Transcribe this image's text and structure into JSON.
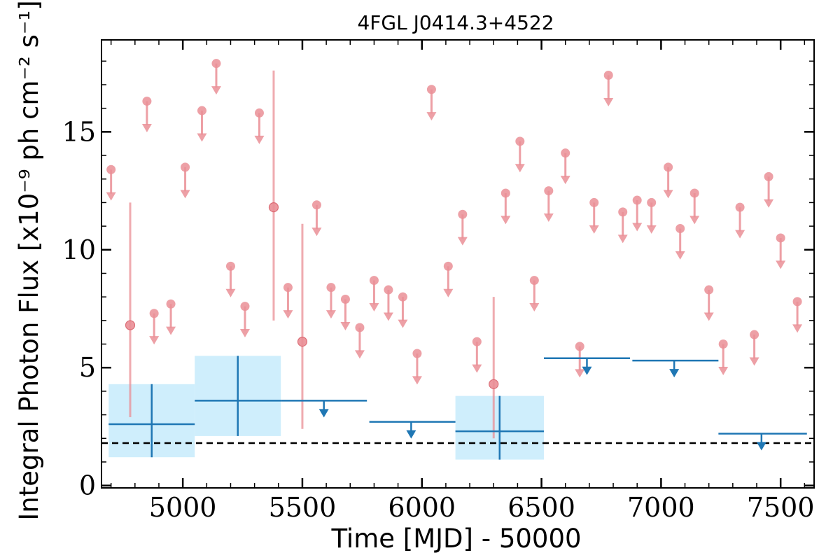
{
  "chart_data": {
    "type": "scatter",
    "title": "4FGL J0414.3+4522",
    "xlabel": "Time [MJD] - 50000",
    "ylabel": "Integral Photon Flux [x10⁻⁹ ph cm⁻² s⁻¹]",
    "xlim": [
      4660,
      7640
    ],
    "ylim": [
      -0.1,
      18.9
    ],
    "xticks": [
      5000,
      5500,
      6000,
      6500,
      7000,
      7500
    ],
    "yticks": [
      0,
      5,
      10,
      15
    ],
    "grid": false,
    "baseline": 1.8,
    "colors": {
      "short_bins": "#ea8f96",
      "long_bins": "#1f77b4",
      "error_box": "#cfeefc",
      "baseline": "#000000"
    },
    "short_bins_upper_limits": [
      {
        "x": 4700,
        "y": 13.4
      },
      {
        "x": 4850,
        "y": 16.3
      },
      {
        "x": 4880,
        "y": 7.3
      },
      {
        "x": 4950,
        "y": 7.7
      },
      {
        "x": 5010,
        "y": 13.5
      },
      {
        "x": 5080,
        "y": 15.9
      },
      {
        "x": 5140,
        "y": 17.9
      },
      {
        "x": 5200,
        "y": 9.3
      },
      {
        "x": 5260,
        "y": 7.6
      },
      {
        "x": 5320,
        "y": 15.8
      },
      {
        "x": 5440,
        "y": 8.4
      },
      {
        "x": 5560,
        "y": 11.9
      },
      {
        "x": 5620,
        "y": 8.4
      },
      {
        "x": 5680,
        "y": 7.9
      },
      {
        "x": 5740,
        "y": 6.7
      },
      {
        "x": 5800,
        "y": 8.7
      },
      {
        "x": 5860,
        "y": 8.3
      },
      {
        "x": 5920,
        "y": 8.0
      },
      {
        "x": 5980,
        "y": 5.6
      },
      {
        "x": 6040,
        "y": 16.8
      },
      {
        "x": 6110,
        "y": 9.3
      },
      {
        "x": 6170,
        "y": 11.5
      },
      {
        "x": 6230,
        "y": 6.1
      },
      {
        "x": 6350,
        "y": 12.4
      },
      {
        "x": 6410,
        "y": 14.6
      },
      {
        "x": 6470,
        "y": 8.7
      },
      {
        "x": 6530,
        "y": 12.5
      },
      {
        "x": 6600,
        "y": 14.1
      },
      {
        "x": 6660,
        "y": 5.9
      },
      {
        "x": 6720,
        "y": 12.0
      },
      {
        "x": 6780,
        "y": 17.4
      },
      {
        "x": 6840,
        "y": 11.6
      },
      {
        "x": 6900,
        "y": 12.1
      },
      {
        "x": 6960,
        "y": 12.0
      },
      {
        "x": 7030,
        "y": 13.5
      },
      {
        "x": 7080,
        "y": 10.9
      },
      {
        "x": 7140,
        "y": 12.4
      },
      {
        "x": 7200,
        "y": 8.3
      },
      {
        "x": 7260,
        "y": 6.0
      },
      {
        "x": 7330,
        "y": 11.8
      },
      {
        "x": 7390,
        "y": 6.4
      },
      {
        "x": 7450,
        "y": 13.1
      },
      {
        "x": 7500,
        "y": 10.5
      },
      {
        "x": 7570,
        "y": 7.8
      }
    ],
    "short_bins_detections": [
      {
        "x": 4780,
        "y": 6.8,
        "ylow": 2.9,
        "yhigh": 12.0
      },
      {
        "x": 5380,
        "y": 11.8,
        "ylow": 7.0,
        "yhigh": 17.6
      },
      {
        "x": 5500,
        "y": 6.1,
        "ylow": 2.4,
        "yhigh": 11.1
      },
      {
        "x": 6300,
        "y": 4.3,
        "ylow": 2.0,
        "yhigh": 8.0
      }
    ],
    "long_bins_upper_limits": [
      {
        "x0": 5410,
        "x1": 5770,
        "y": 3.6,
        "xarrow": 5590
      },
      {
        "x0": 5780,
        "x1": 6140,
        "y": 2.7,
        "xarrow": 5955
      },
      {
        "x0": 6510,
        "x1": 6870,
        "y": 5.4,
        "xarrow": 6690
      },
      {
        "x0": 6880,
        "x1": 7240,
        "y": 5.3,
        "xarrow": 7055
      },
      {
        "x0": 7240,
        "x1": 7610,
        "y": 2.2,
        "xarrow": 7420
      }
    ],
    "long_bins_detections": [
      {
        "x0": 4690,
        "x1": 5050,
        "xc": 4870,
        "y": 2.6,
        "ylow": 1.2,
        "yhigh": 4.3
      },
      {
        "x0": 5050,
        "x1": 5410,
        "xc": 5230,
        "y": 3.6,
        "ylow": 2.1,
        "yhigh": 5.5
      },
      {
        "x0": 6140,
        "x1": 6510,
        "xc": 6325,
        "y": 2.3,
        "ylow": 1.1,
        "yhigh": 3.8
      }
    ]
  }
}
